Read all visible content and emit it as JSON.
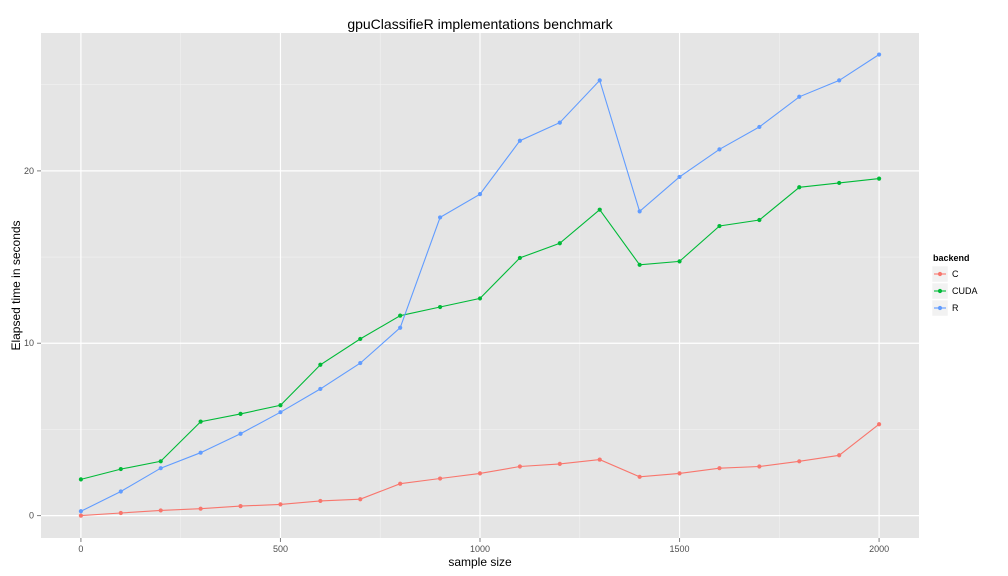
{
  "chart_data": {
    "type": "line",
    "title": "gpuClassifieR implementations benchmark",
    "xlabel": "sample size",
    "ylabel": "Elapsed time in seconds",
    "xlim": [
      -100,
      2100
    ],
    "ylim": [
      -1.3,
      28
    ],
    "x_ticks": [
      0,
      500,
      1000,
      1500,
      2000
    ],
    "y_ticks": [
      0,
      10,
      20
    ],
    "grid": true,
    "legend": {
      "title": "backend",
      "position": "right"
    },
    "x": [
      0,
      100,
      200,
      300,
      400,
      500,
      600,
      700,
      800,
      900,
      1000,
      1100,
      1200,
      1300,
      1400,
      1500,
      1600,
      1700,
      1800,
      1900,
      2000
    ],
    "series": [
      {
        "name": "C",
        "color": "#F8766D",
        "values": [
          0.0,
          0.15,
          0.3,
          0.4,
          0.55,
          0.65,
          0.85,
          0.95,
          1.85,
          2.15,
          2.45,
          2.85,
          3.0,
          3.25,
          2.25,
          2.45,
          2.75,
          2.85,
          3.15,
          3.5,
          5.3
        ]
      },
      {
        "name": "CUDA",
        "color": "#00BA38",
        "values": [
          2.1,
          2.7,
          3.15,
          5.45,
          5.9,
          6.4,
          8.75,
          10.25,
          11.6,
          12.1,
          12.6,
          14.95,
          15.8,
          17.75,
          14.55,
          14.75,
          16.8,
          17.15,
          19.05,
          19.3,
          19.55
        ]
      },
      {
        "name": "R",
        "color": "#619CFF",
        "values": [
          0.25,
          1.4,
          2.75,
          3.65,
          4.75,
          6.0,
          7.35,
          8.85,
          10.9,
          17.3,
          18.65,
          21.75,
          22.8,
          25.25,
          17.65,
          19.65,
          21.25,
          22.55,
          24.3,
          25.25,
          26.75
        ]
      }
    ]
  }
}
